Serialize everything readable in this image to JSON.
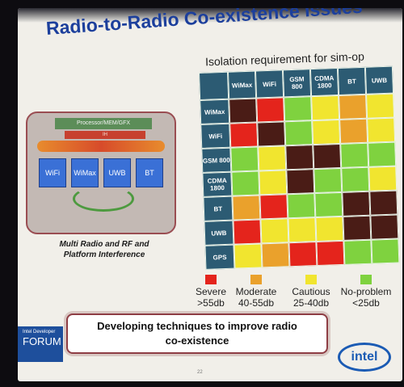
{
  "slide": {
    "title": "Radio-to-Radio Co-existence Issues",
    "subtitle": "Isolation requirement for sim-op",
    "diagram": {
      "processor_label": "Processor/MEM/GFX",
      "ih_label": "IH",
      "radios": [
        "WiFi",
        "WiMax",
        "UWB",
        "BT"
      ],
      "caption_line1": "Multi Radio and RF and",
      "caption_line2": "Platform Interference"
    },
    "matrix": {
      "columns": [
        "WiMax",
        "WiFi",
        "GSM 800",
        "CDMA 1800",
        "BT",
        "UWB"
      ],
      "rows": [
        "WiMax",
        "WiFi",
        "GSM 800",
        "CDMA 1800",
        "BT",
        "UWB",
        "GPS"
      ],
      "colors": {
        "D": "#4a1c16",
        "R": "#e4241c",
        "O": "#eaa12c",
        "Y": "#f1e52f",
        "G": "#7fd23f"
      },
      "cells": [
        [
          "D",
          "R",
          "G",
          "Y",
          "O",
          "Y"
        ],
        [
          "R",
          "D",
          "G",
          "Y",
          "O",
          "Y"
        ],
        [
          "G",
          "Y",
          "D",
          "D",
          "G",
          "G"
        ],
        [
          "G",
          "Y",
          "D",
          "G",
          "G",
          "Y"
        ],
        [
          "O",
          "R",
          "G",
          "G",
          "D",
          "D"
        ],
        [
          "R",
          "Y",
          "Y",
          "Y",
          "D",
          "D"
        ],
        [
          "Y",
          "O",
          "R",
          "R",
          "G",
          "G"
        ]
      ]
    },
    "legend": [
      {
        "label": "Severe",
        "range": ">55db",
        "color": "#e4241c"
      },
      {
        "label": "Moderate",
        "range": "40-55db",
        "color": "#eaa12c"
      },
      {
        "label": "Cautious",
        "range": "25-40db",
        "color": "#f1e52f"
      },
      {
        "label": "No-problem",
        "range": "<25db",
        "color": "#7fd23f"
      }
    ],
    "banner_line1": "Developing techniques to improve radio",
    "banner_line2": "co-existence",
    "forum_small": "Intel Developer",
    "forum_big": "FORUM",
    "logo": "intel",
    "page_number": "22"
  }
}
